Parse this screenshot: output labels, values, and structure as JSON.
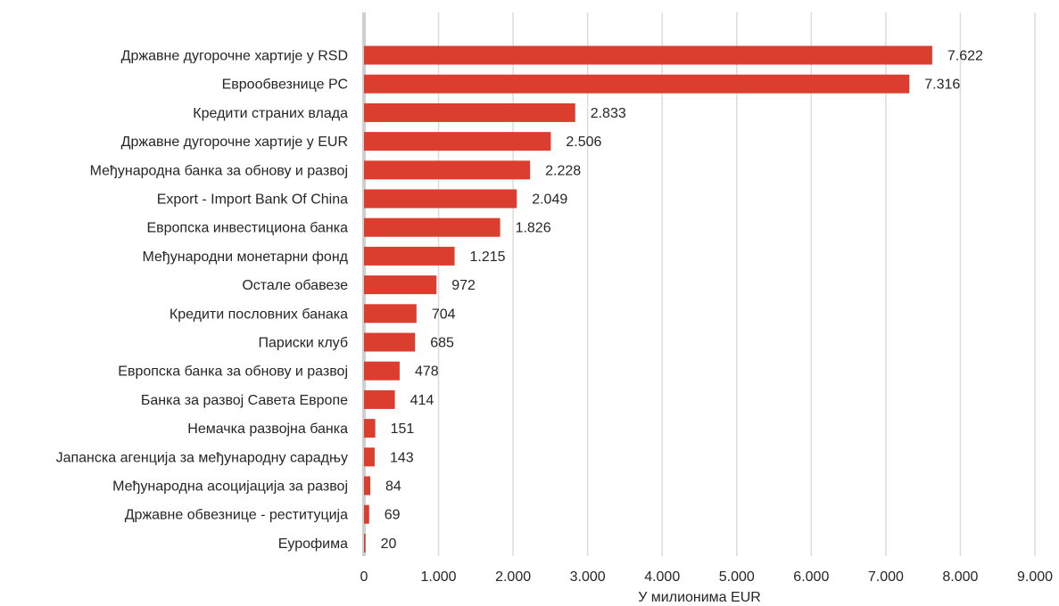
{
  "chart_data": {
    "type": "bar",
    "orientation": "horizontal",
    "categories": [
      "Државне дугорочне хартије у RSD",
      "Еврообвезнице РС",
      "Кредити страних влада",
      "Државне дугорочне хартије  у EUR",
      "Међународна банка за обнову и развој",
      "Export - Import Bank Of China ",
      "Европска инвестициона банка",
      "Међународни монетарни фонд",
      "Остале обавезе",
      "Кредити пословних банака",
      "Париски клуб",
      "Европска банка за обнову и развој",
      "Банка за развој Савета Европе",
      "Немачка развојна банка",
      "Јапанска агенција за међународну сарадњу",
      "Међународна асоцијација за развој",
      "Државне обвезнице - реституција",
      "Еурофима"
    ],
    "values": [
      7622,
      7316,
      2833,
      2506,
      2228,
      2049,
      1826,
      1215,
      972,
      704,
      685,
      478,
      414,
      151,
      143,
      84,
      69,
      20
    ],
    "value_labels": [
      "7.622",
      "7.316",
      "2.833",
      "2.506",
      "2.228",
      "2.049",
      "1.826",
      "1.215",
      "972",
      "704",
      "685",
      "478",
      "414",
      "151",
      "143",
      "84",
      "69",
      "20"
    ],
    "xlabel": "У милионима EUR",
    "ylabel": "",
    "xlim": [
      0,
      9000
    ],
    "xticks": [
      0,
      1000,
      2000,
      3000,
      4000,
      5000,
      6000,
      7000,
      8000,
      9000
    ],
    "xtick_labels": [
      "0",
      "1.000",
      "2.000",
      "3.000",
      "4.000",
      "5.000",
      "6.000",
      "7.000",
      "8.000",
      "9.000"
    ],
    "grid": "vertical",
    "legend": "none",
    "colors": {
      "bar": "#db3d2f",
      "grid": "#dcdcdc",
      "axis": "#cfcfcf",
      "text": "#262626"
    }
  }
}
